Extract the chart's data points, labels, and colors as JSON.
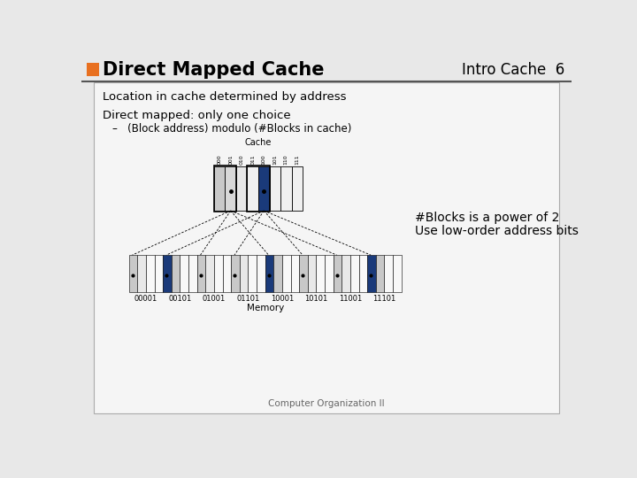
{
  "title": "Direct Mapped Cache",
  "subtitle_right": "Intro Cache  6",
  "line1": "Location in cache determined by address",
  "line2": "Direct mapped: only one choice",
  "line3": "–   (Block address) modulo (#Blocks in cache)",
  "right_text1": "#Blocks is a power of 2",
  "right_text2": "Use low-order address bits",
  "footer": "Computer Organization II",
  "cache_label": "Cache",
  "memory_label": "Memory",
  "cache_labels": [
    "000",
    "001",
    "010",
    "011",
    "100",
    "101",
    "110",
    "111"
  ],
  "memory_labels": [
    "00001",
    "00101",
    "01001",
    "01101",
    "10001",
    "10101",
    "11001",
    "11101"
  ],
  "slide_bg": "#e8e8e8",
  "content_bg": "#f5f5f5",
  "orange_rect": "#e87020",
  "dark_blue": "#1a3a7a",
  "light_gray": "#c8c8c8",
  "cache_colors": [
    "#c8c8c8",
    "#d8d8d8",
    "#e8e8e8",
    "#f0f0f0",
    "#1a3a7a",
    "#f0f0f0",
    "#f0f0f0",
    "#f0f0f0"
  ],
  "mem_group_colors": [
    [
      "#c8c8c8",
      "#e8e8e8",
      "#f8f8f8",
      "#f8f8f8"
    ],
    [
      "#1a3a7a",
      "#c8c8c8",
      "#f8f8f8",
      "#f8f8f8"
    ],
    [
      "#c8c8c8",
      "#e8e8e8",
      "#f8f8f8",
      "#f8f8f8"
    ],
    [
      "#c8c8c8",
      "#e8e8e8",
      "#f8f8f8",
      "#f8f8f8"
    ],
    [
      "#1a3a7a",
      "#c8c8c8",
      "#f8f8f8",
      "#f8f8f8"
    ],
    [
      "#c8c8c8",
      "#e8e8e8",
      "#f8f8f8",
      "#f8f8f8"
    ],
    [
      "#c8c8c8",
      "#e8e8e8",
      "#f8f8f8",
      "#f8f8f8"
    ],
    [
      "#1a3a7a",
      "#c8c8c8",
      "#f8f8f8",
      "#f8f8f8"
    ]
  ]
}
